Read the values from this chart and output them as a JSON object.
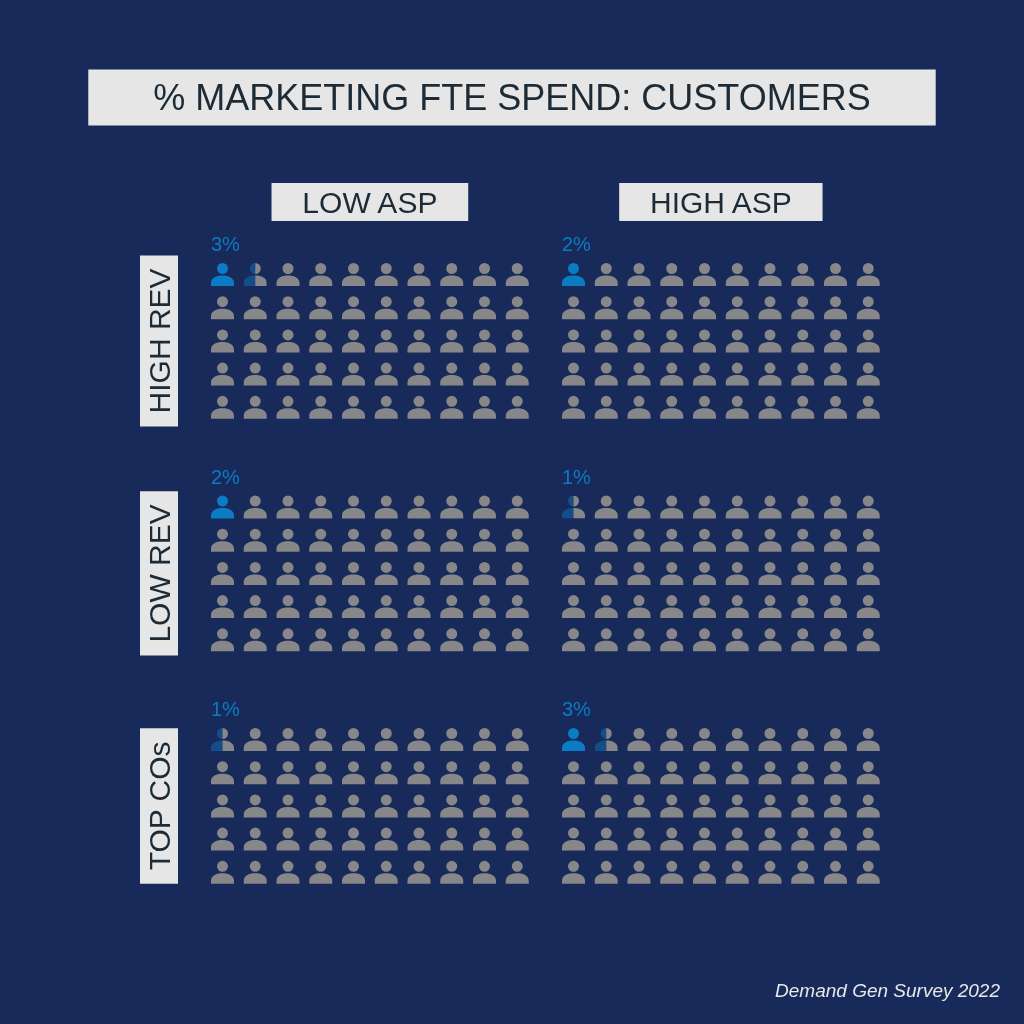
{
  "chart_data": [
    {
      "type": "other",
      "title": "% MARKETING FTE SPEND: CUSTOMERS"
    },
    {
      "type": "other",
      "title": "LOW ASP",
      "categories": [
        "HIGH REV",
        "LOW REV",
        "TOP COs"
      ],
      "values": [
        3,
        2,
        1
      ],
      "value_labels": [
        "3%",
        "2%",
        "1%"
      ],
      "color": "#0b7bc3"
    },
    {
      "type": "other",
      "title": "HIGH ASP",
      "values": [
        2,
        1,
        3
      ],
      "value_labels": [
        "2%",
        "1%",
        "3%"
      ],
      "color": "#0b7bc3",
      "annotations": [
        "Demand Gen Survey 2022"
      ]
    }
  ]
}
